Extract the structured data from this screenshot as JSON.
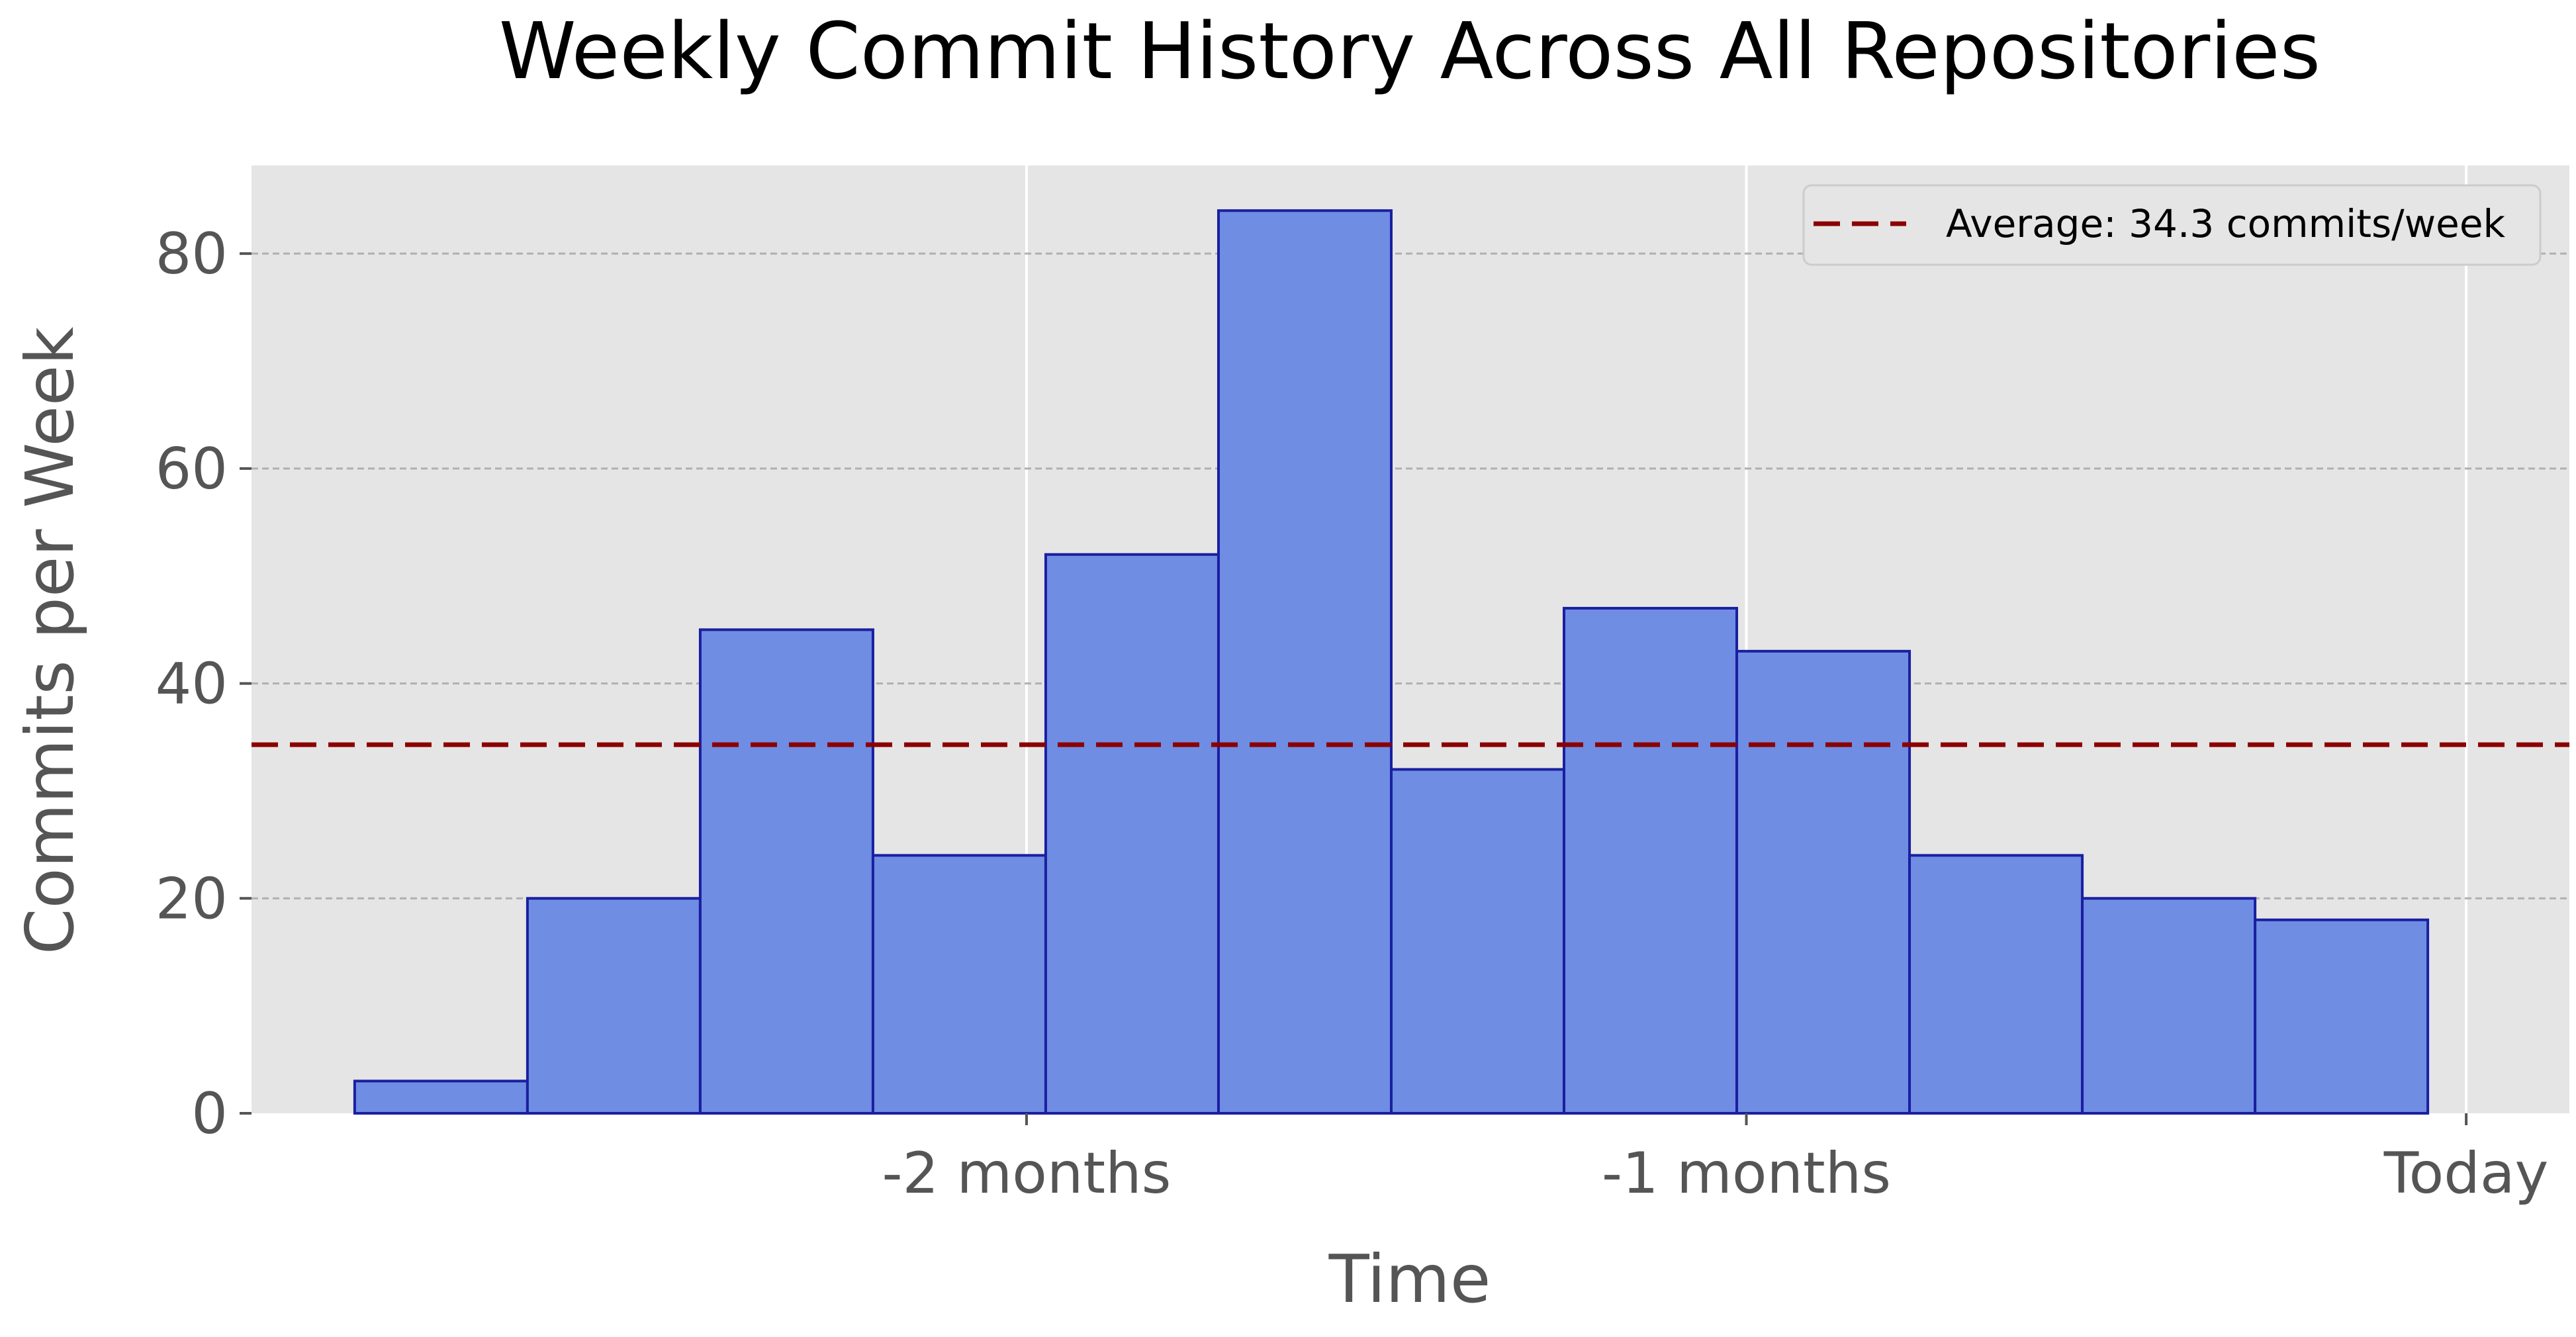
{
  "chart_data": {
    "type": "bar",
    "title": "Weekly Commit History Across All Repositories",
    "xlabel": "Time",
    "ylabel": "Commits per Week",
    "x_ticks": [
      {
        "label": "-2 months",
        "x": -60
      },
      {
        "label": "-1 months",
        "x": -30
      },
      {
        "label": "Today",
        "x": 0
      }
    ],
    "xlim": [
      -92.3,
      4.3
    ],
    "ylim": [
      0,
      88.2
    ],
    "y_ticks": [
      0,
      20,
      40,
      60,
      80
    ],
    "bars": [
      {
        "x_start": -88,
        "x_end": -80.8,
        "value": 3
      },
      {
        "x_start": -80.8,
        "x_end": -73.6,
        "value": 20
      },
      {
        "x_start": -73.6,
        "x_end": -66.4,
        "value": 45
      },
      {
        "x_start": -66.4,
        "x_end": -59.2,
        "value": 24
      },
      {
        "x_start": -59.2,
        "x_end": -52.0,
        "value": 52
      },
      {
        "x_start": -52.0,
        "x_end": -44.8,
        "value": 84
      },
      {
        "x_start": -44.8,
        "x_end": -37.6,
        "value": 32
      },
      {
        "x_start": -37.6,
        "x_end": -30.4,
        "value": 47
      },
      {
        "x_start": -30.4,
        "x_end": -23.2,
        "value": 43
      },
      {
        "x_start": -23.2,
        "x_end": -16.0,
        "value": 24
      },
      {
        "x_start": -16.0,
        "x_end": -8.8,
        "value": 20
      },
      {
        "x_start": -8.8,
        "x_end": -1.6,
        "value": 18
      }
    ],
    "average": {
      "value": 34.3,
      "label": "Average: 34.3 commits/week"
    },
    "grid": true,
    "legend_position": "top-right",
    "colors": {
      "bar_fill": "#6F8DE3",
      "bar_edge": "#1A1FA0",
      "average_line": "#8B0000",
      "plot_background": "#E5E5E5",
      "grid_major": "#FFFFFF",
      "grid_minor": "#B0B0B0"
    }
  }
}
